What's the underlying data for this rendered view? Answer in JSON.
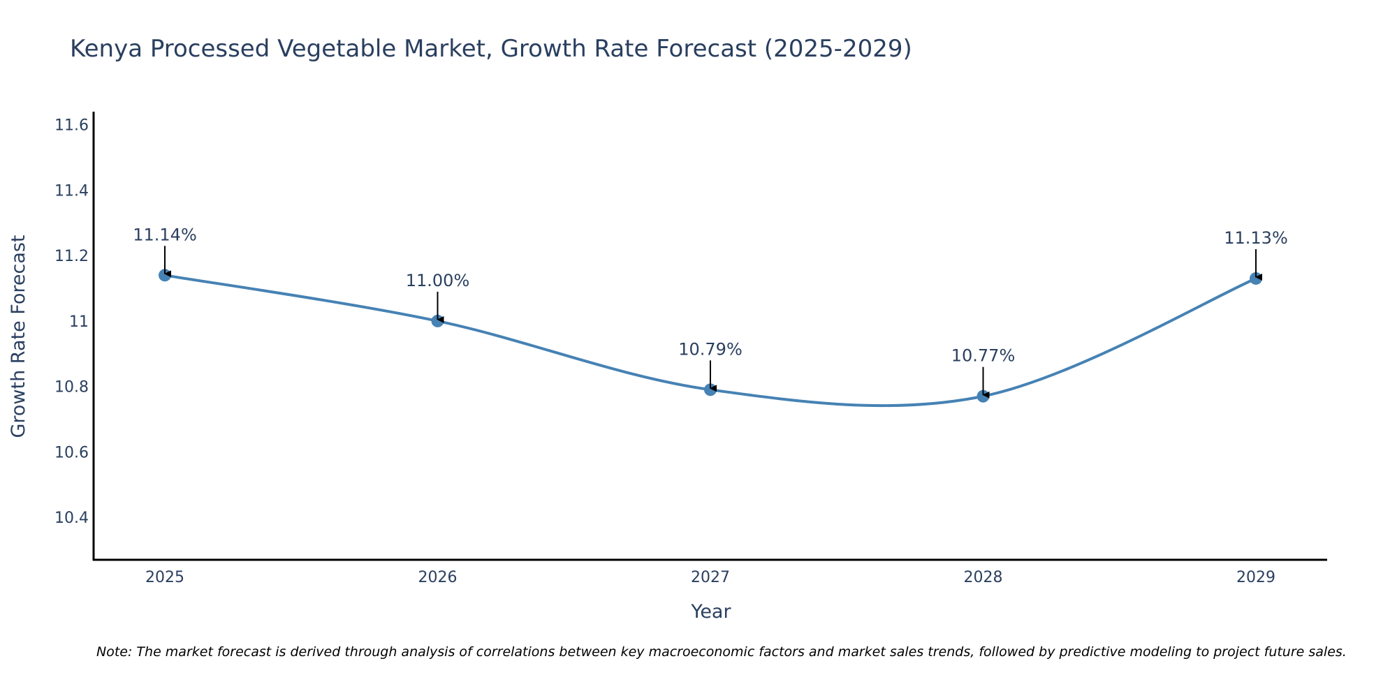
{
  "chart_data": {
    "type": "line",
    "title": "Kenya Processed Vegetable Market, Growth Rate Forecast (2025-2029)",
    "xlabel": "Year",
    "ylabel": "Growth Rate Forecast",
    "categories": [
      "2025",
      "2026",
      "2027",
      "2028",
      "2029"
    ],
    "series": [
      {
        "name": "Growth Rate Forecast",
        "values": [
          11.14,
          11.0,
          10.79,
          10.77,
          11.13
        ],
        "labels": [
          "11.14%",
          "11.00%",
          "10.79%",
          "10.77%",
          "11.13%"
        ]
      }
    ],
    "ylim": [
      10.27,
      11.64
    ],
    "yticks": [
      10.4,
      10.6,
      10.8,
      11.0,
      11.2,
      11.4,
      11.6
    ],
    "ytick_labels": [
      "10.4",
      "10.6",
      "10.8",
      "11",
      "11.2",
      "11.4",
      "11.6"
    ],
    "grid": false,
    "line_color": "#4682b4",
    "marker_color": "#4682b4",
    "annotation_arrow_color": "#000000",
    "note": "Note: The market forecast is derived through analysis of correlations between key macroeconomic factors and market sales trends, followed by predictive modeling to project future sales."
  }
}
